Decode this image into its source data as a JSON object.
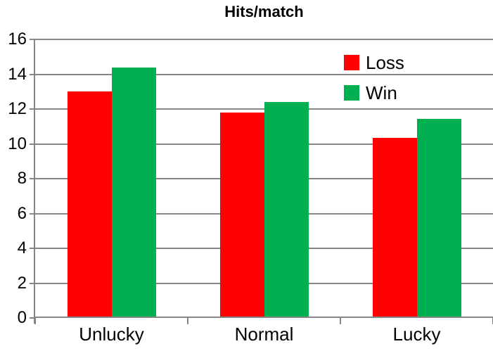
{
  "title": "Hits/match",
  "legend": {
    "items": [
      {
        "label": "Loss",
        "color": "#FF0000"
      },
      {
        "label": "Win",
        "color": "#00B050"
      }
    ]
  },
  "chart_data": {
    "type": "bar",
    "title": "Hits/match",
    "categories": [
      "Unlucky",
      "Normal",
      "Lucky"
    ],
    "series": [
      {
        "name": "Loss",
        "color": "#FF0000",
        "values": [
          13.0,
          11.8,
          10.35
        ]
      },
      {
        "name": "Win",
        "color": "#00B050",
        "values": [
          14.4,
          12.4,
          11.45
        ]
      }
    ],
    "xlabel": "",
    "ylabel": "",
    "ylim": [
      0,
      16
    ],
    "yticks": [
      0,
      2,
      4,
      6,
      8,
      10,
      12,
      14,
      16
    ],
    "grid": true,
    "gridline_color": "#868686",
    "axis_text_color": "#000000",
    "legend_position": "inside-top-right",
    "background": "#FFFFFF"
  }
}
